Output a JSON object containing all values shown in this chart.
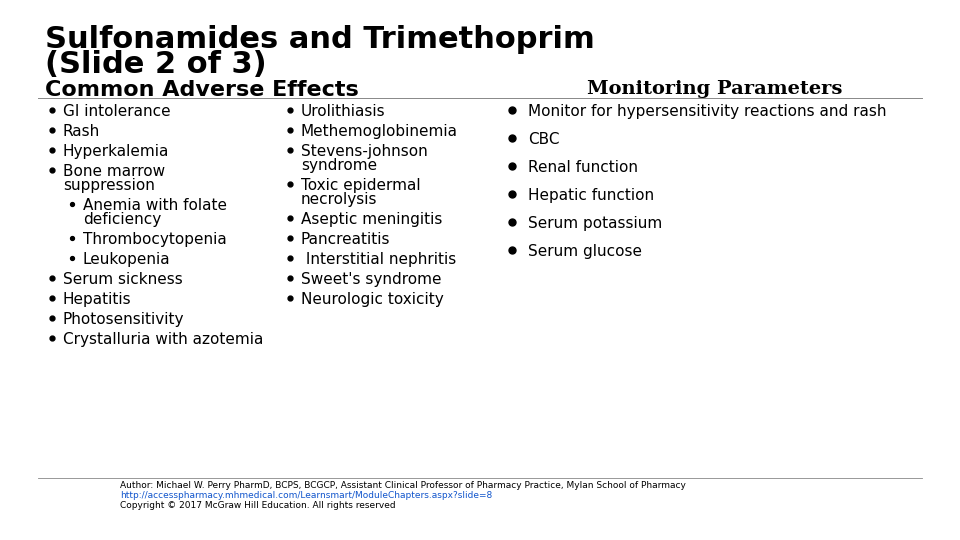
{
  "title_line1": "Sulfonamides and Trimethoprim",
  "title_line2": "(Slide 2 of 3)",
  "subtitle": "Common Adverse Effects",
  "monitoring_title": "Monitoring Parameters",
  "background_color": "#ffffff",
  "title_fontsize": 22,
  "subtitle_fontsize": 16,
  "monitoring_fontsize": 14,
  "body_fontsize": 11,
  "footer_fontsize": 6.5,
  "footer_author": "Author: Michael W. Perry PharmD, BCPS, BCGCP, Assistant Clinical Professor of Pharmacy Practice, Mylan School of Pharmacy",
  "footer_url": "http://accesspharmacy.mhmedical.com/Learnsmart/ModuleChapters.aspx?slide=8",
  "footer_copyright": "Copyright © 2017 McGraw Hill Education. All rights reserved"
}
